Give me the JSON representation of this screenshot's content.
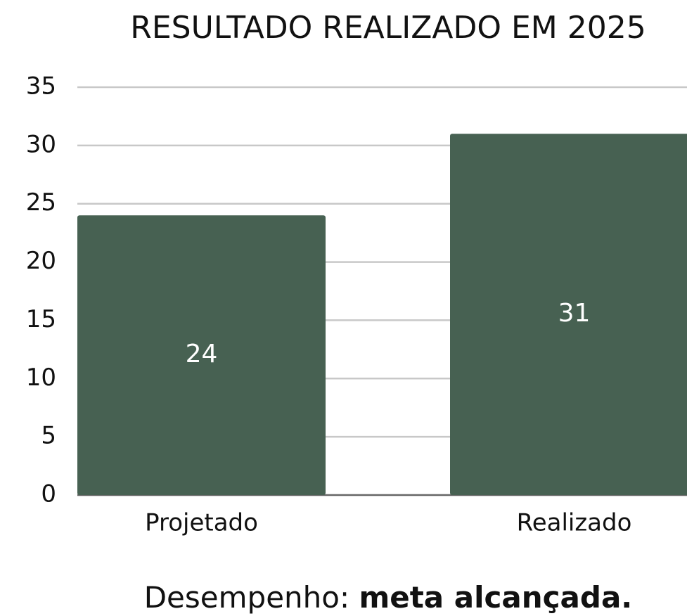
{
  "chart_data": {
    "type": "bar",
    "title": "RESULTADO REALIZADO EM 2025",
    "categories": [
      "Projetado",
      "Realizado"
    ],
    "values": [
      24,
      31
    ],
    "color": "#476152",
    "ylim": [
      0,
      35
    ],
    "yticks": [
      0,
      5,
      10,
      15,
      20,
      25,
      30,
      35
    ],
    "grid": true,
    "footer": {
      "label": "Desempenho:",
      "value": "meta alcançada."
    }
  }
}
